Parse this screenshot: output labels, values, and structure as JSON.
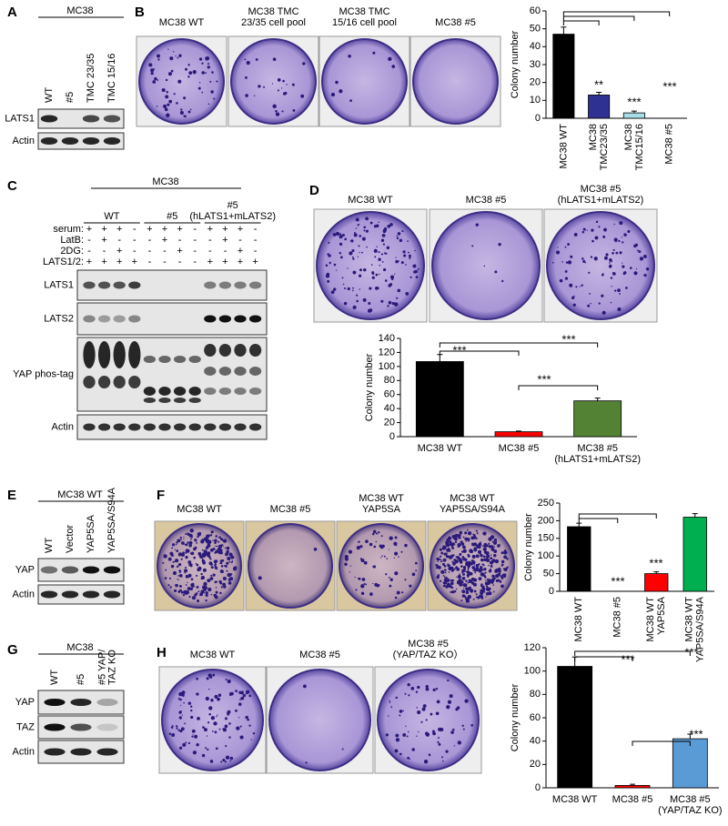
{
  "panels": {
    "A": {
      "label": "A",
      "header": "MC38",
      "lanes": [
        [
          "WT"
        ],
        [
          "#5"
        ],
        [
          "TMC 23/35"
        ],
        [
          "TMC 15/16"
        ]
      ],
      "rows": [
        "LATS1",
        "Actin"
      ]
    },
    "B": {
      "label": "B",
      "plates": [
        [
          "MC38 WT"
        ],
        [
          "MC38 TMC",
          "23/35 cell pool"
        ],
        [
          "MC38  TMC",
          "15/16 cell pool"
        ],
        [
          "MC38 #5"
        ]
      ]
    },
    "C": {
      "label": "C",
      "header": "MC38",
      "groups": [
        [
          "WT"
        ],
        [
          "#5"
        ],
        [
          "#5",
          "(hLATS1+mLATS2)"
        ]
      ],
      "conditions": [
        {
          "name": "serum:",
          "signs": [
            "+",
            "+",
            "+",
            "-",
            "+",
            "+",
            "+",
            "-",
            "+",
            "+",
            "+",
            "-"
          ]
        },
        {
          "name": "LatB:",
          "signs": [
            "-",
            "+",
            "-",
            "-",
            "-",
            "+",
            "-",
            "-",
            "-",
            "+",
            "-",
            "-"
          ]
        },
        {
          "name": "2DG:",
          "signs": [
            "-",
            "-",
            "+",
            "-",
            "-",
            "-",
            "+",
            "-",
            "-",
            "-",
            "+",
            "-"
          ]
        },
        {
          "name": "LATS1/2:",
          "signs": [
            "+",
            "+",
            "+",
            "+",
            "-",
            "-",
            "-",
            "-",
            "+",
            "+",
            "+",
            "+"
          ]
        }
      ],
      "rows": [
        "LATS1",
        "LATS2",
        "YAP phos-tag",
        "Actin"
      ]
    },
    "D": {
      "label": "D",
      "plates": [
        [
          "MC38 WT"
        ],
        [
          "MC38 #5"
        ],
        [
          "MC38  #5",
          "(hLATS1+mLATS2)"
        ]
      ]
    },
    "E": {
      "label": "E",
      "header": "MC38 WT",
      "lanes": [
        [
          "WT"
        ],
        [
          "Vector"
        ],
        [
          "YAP5SA"
        ],
        [
          "YAP5SA/S94A"
        ]
      ],
      "rows": [
        "YAP",
        "Actin"
      ]
    },
    "F": {
      "label": "F",
      "plates": [
        [
          "MC38 WT"
        ],
        [
          "MC38 #5"
        ],
        [
          "MC38 WT",
          "YAP5SA"
        ],
        [
          "MC38 WT",
          "YAP5SA/S94A"
        ]
      ]
    },
    "G": {
      "label": "G",
      "header": "MC38",
      "lanes": [
        [
          "WT"
        ],
        [
          "#5"
        ],
        [
          "#5 YAP/",
          "TAZ KO"
        ]
      ],
      "rows": [
        "YAP",
        "TAZ",
        "Actin"
      ]
    },
    "H": {
      "label": "H",
      "plates": [
        [
          "MC38 WT"
        ],
        [
          "MC38 #5"
        ],
        [
          "MC38 #5",
          "(YAP/TAZ KO）"
        ]
      ]
    }
  },
  "chart_data": [
    {
      "type": "bar",
      "ylabel": "Colony number",
      "categories": [
        [
          "MC38 WT"
        ],
        [
          "MC38",
          "TMC23/35"
        ],
        [
          "MC38",
          "TMC15/16"
        ],
        [
          "MC38 #5"
        ]
      ],
      "values": [
        47,
        13,
        3,
        0
      ],
      "errors": [
        4,
        1.5,
        1,
        0
      ],
      "colors": [
        "#000000",
        "#2e3192",
        "#a8dce6",
        "#ffffff"
      ],
      "ylim": [
        0,
        60
      ],
      "yticks": [
        0,
        10,
        20,
        30,
        40,
        50,
        60
      ],
      "annotations": [
        "**",
        "***",
        "***"
      ]
    },
    {
      "type": "bar",
      "ylabel": "Colony number",
      "categories": [
        [
          "MC38 WT"
        ],
        [
          "MC38 #5"
        ],
        [
          "MC38 #5",
          "(hLATS1+mLATS2)"
        ]
      ],
      "values": [
        107,
        7,
        51
      ],
      "errors": [
        10,
        1,
        4
      ],
      "colors": [
        "#000000",
        "#ff0000",
        "#548235"
      ],
      "ylim": [
        0,
        140
      ],
      "yticks": [
        0,
        20,
        40,
        60,
        80,
        100,
        120,
        140
      ],
      "annotations": [
        "***",
        "***",
        "***"
      ]
    },
    {
      "type": "bar",
      "ylabel": "Colony number",
      "categories": [
        [
          "MC38 WT"
        ],
        [
          "MC38 #5"
        ],
        [
          "MC38 WT",
          "YAP5SA"
        ],
        [
          "MC38 WT",
          "YAP5SA/S94A"
        ]
      ],
      "values": [
        183,
        0,
        50,
        210
      ],
      "errors": [
        10,
        0,
        5,
        10
      ],
      "colors": [
        "#000000",
        "#ffffff",
        "#ff0000",
        "#00b050"
      ],
      "ylim": [
        0,
        250
      ],
      "yticks": [
        0,
        50,
        100,
        150,
        200,
        250
      ],
      "annotations": [
        "***",
        "***"
      ]
    },
    {
      "type": "bar",
      "ylabel": "Colony number",
      "categories": [
        [
          "MC38 WT"
        ],
        [
          "MC38 #5"
        ],
        [
          "MC38 #5",
          "(YAP/TAZ KO)"
        ]
      ],
      "values": [
        104,
        2,
        42
      ],
      "errors": [
        8,
        1,
        4
      ],
      "colors": [
        "#000000",
        "#ff0000",
        "#5b9bd5"
      ],
      "ylim": [
        0,
        120
      ],
      "yticks": [
        0,
        20,
        40,
        60,
        80,
        100,
        120
      ],
      "annotations": [
        "***",
        "***",
        "***"
      ]
    }
  ]
}
